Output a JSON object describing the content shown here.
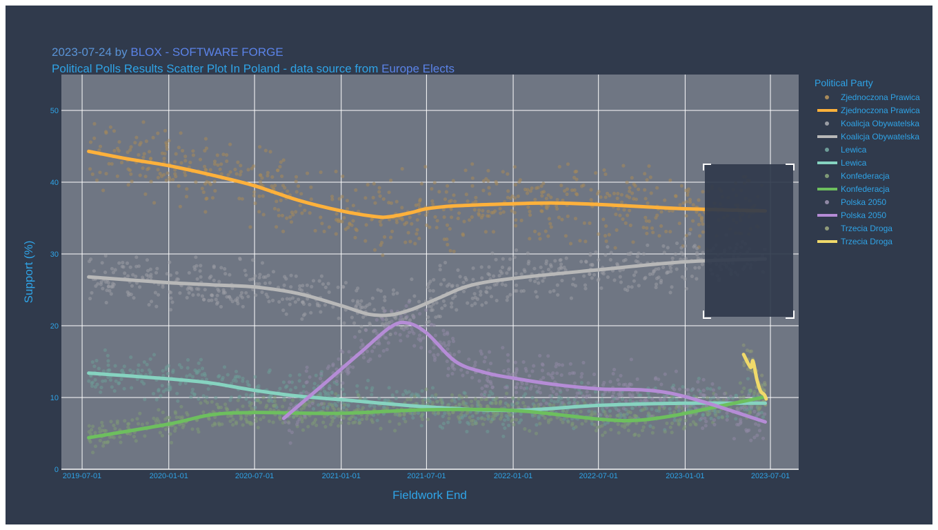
{
  "title": {
    "line1_prefix": "2023-07-24 by ",
    "line1_link": "BLOX - SOFTWARE FORGE",
    "line2_text": "Political Polls Results Scatter Plot In Poland - data source from ",
    "line2_link": "Europe Elects"
  },
  "colors": {
    "background": "#303a4c",
    "plot_background": "#6f7683",
    "text": "#2fa4e7",
    "link": "#5b83e8",
    "gridline": "#ffffff"
  },
  "chart_data": {
    "type": "scatter",
    "title": "2023-07-24 by BLOX - SOFTWARE FORGE / Political Polls Results Scatter Plot In Poland - data source from Europe Elects",
    "xlabel": "Fieldwork End",
    "ylabel": "Support (%)",
    "x_ticks": [
      "2019-07-01",
      "2020-01-01",
      "2020-07-01",
      "2021-01-01",
      "2021-07-01",
      "2022-01-01",
      "2022-07-01",
      "2023-01-01",
      "2023-07-01"
    ],
    "x_range": [
      "2019-05-18",
      "2023-08-30"
    ],
    "y_ticks": [
      0,
      10,
      20,
      30,
      40,
      50
    ],
    "ylim": [
      0,
      55
    ],
    "grid": true,
    "legend_title": "Political Party",
    "legend_position": "right",
    "legend": [
      {
        "label": "Zjednoczona Prawica",
        "kind": "markers"
      },
      {
        "label": "Zjednoczona Prawica",
        "kind": "lines"
      },
      {
        "label": "Koalicja Obywatelska",
        "kind": "markers"
      },
      {
        "label": "Koalicja Obywatelska",
        "kind": "lines"
      },
      {
        "label": "Lewica",
        "kind": "markers"
      },
      {
        "label": "Lewica",
        "kind": "lines"
      },
      {
        "label": "Konfederacja",
        "kind": "markers"
      },
      {
        "label": "Konfederacja",
        "kind": "lines"
      },
      {
        "label": "Polska 2050",
        "kind": "markers"
      },
      {
        "label": "Polska 2050",
        "kind": "lines"
      },
      {
        "label": "Trzecia Droga",
        "kind": "markers"
      },
      {
        "label": "Trzecia Droga",
        "kind": "lines"
      }
    ],
    "series": [
      {
        "name": "Zjednoczona Prawica",
        "color": "#ffb13b",
        "marker_color": "#a88a5a",
        "spread": 3.5,
        "trend": [
          [
            "2019-07-15",
            44.3
          ],
          [
            "2019-10-01",
            43.3
          ],
          [
            "2020-01-01",
            42.3
          ],
          [
            "2020-04-01",
            41.0
          ],
          [
            "2020-07-01",
            39.5
          ],
          [
            "2020-10-01",
            37.5
          ],
          [
            "2021-01-01",
            36.0
          ],
          [
            "2021-03-15",
            35.2
          ],
          [
            "2021-04-15",
            35.2
          ],
          [
            "2021-06-01",
            35.8
          ],
          [
            "2021-07-01",
            36.3
          ],
          [
            "2021-09-01",
            36.7
          ],
          [
            "2022-01-01",
            37.0
          ],
          [
            "2022-04-01",
            37.1
          ],
          [
            "2022-07-01",
            36.9
          ],
          [
            "2022-10-01",
            36.6
          ],
          [
            "2023-01-01",
            36.3
          ],
          [
            "2023-06-20",
            36.0
          ]
        ]
      },
      {
        "name": "Koalicja Obywatelska",
        "color": "#b8b8b8",
        "marker_color": "#9a9da4",
        "spread": 2.5,
        "trend": [
          [
            "2019-07-15",
            26.8
          ],
          [
            "2020-01-01",
            26.0
          ],
          [
            "2020-04-01",
            25.7
          ],
          [
            "2020-07-01",
            25.4
          ],
          [
            "2020-10-01",
            24.5
          ],
          [
            "2021-01-01",
            22.8
          ],
          [
            "2021-03-01",
            21.6
          ],
          [
            "2021-04-15",
            21.5
          ],
          [
            "2021-06-01",
            22.3
          ],
          [
            "2021-08-01",
            24.0
          ],
          [
            "2021-10-01",
            25.6
          ],
          [
            "2022-01-01",
            26.6
          ],
          [
            "2022-07-01",
            27.8
          ],
          [
            "2023-01-01",
            28.9
          ],
          [
            "2023-06-20",
            29.3
          ]
        ]
      },
      {
        "name": "Lewica",
        "color": "#86d3c0",
        "marker_color": "#6d9c98",
        "spread": 2.0,
        "trend": [
          [
            "2019-07-15",
            13.4
          ],
          [
            "2020-01-01",
            12.6
          ],
          [
            "2020-04-01",
            12.0
          ],
          [
            "2020-07-01",
            11.0
          ],
          [
            "2020-10-01",
            10.2
          ],
          [
            "2021-01-01",
            9.7
          ],
          [
            "2021-07-01",
            8.7
          ],
          [
            "2022-01-01",
            8.2
          ],
          [
            "2022-07-01",
            8.9
          ],
          [
            "2023-01-01",
            9.2
          ],
          [
            "2023-06-20",
            9.2
          ]
        ]
      },
      {
        "name": "Konfederacja",
        "color": "#6dbf5e",
        "marker_color": "#7f9a76",
        "spread": 1.6,
        "trend": [
          [
            "2019-07-15",
            4.4
          ],
          [
            "2020-01-01",
            6.3
          ],
          [
            "2020-04-01",
            7.6
          ],
          [
            "2020-07-01",
            7.9
          ],
          [
            "2021-01-01",
            7.8
          ],
          [
            "2021-07-01",
            8.3
          ],
          [
            "2022-01-01",
            8.2
          ],
          [
            "2022-07-01",
            7.0
          ],
          [
            "2022-09-15",
            6.8
          ],
          [
            "2022-12-01",
            7.4
          ],
          [
            "2023-03-01",
            8.6
          ],
          [
            "2023-06-20",
            10.1
          ]
        ]
      },
      {
        "name": "Polska 2050",
        "color": "#b58cd6",
        "marker_color": "#8f88a4",
        "spread": 2.4,
        "trend": [
          [
            "2020-09-01",
            7.1
          ],
          [
            "2020-12-01",
            12.2
          ],
          [
            "2021-02-15",
            16.5
          ],
          [
            "2021-04-15",
            19.8
          ],
          [
            "2021-05-20",
            20.4
          ],
          [
            "2021-07-01",
            19.0
          ],
          [
            "2021-09-01",
            15.0
          ],
          [
            "2021-11-01",
            13.5
          ],
          [
            "2022-01-01",
            12.7
          ],
          [
            "2022-04-01",
            11.8
          ],
          [
            "2022-07-01",
            11.2
          ],
          [
            "2022-12-01",
            10.6
          ],
          [
            "2023-06-20",
            6.6
          ]
        ]
      },
      {
        "name": "Trzecia Droga",
        "color": "#f0d96a",
        "marker_color": "#8f9a79",
        "spread": 1.5,
        "trend": [
          [
            "2023-05-05",
            16.0
          ],
          [
            "2023-05-20",
            14.2
          ],
          [
            "2023-05-25",
            15.1
          ],
          [
            "2023-06-02",
            12.6
          ],
          [
            "2023-06-10",
            10.9
          ],
          [
            "2023-06-18",
            10.4
          ],
          [
            "2023-06-22",
            9.8
          ]
        ]
      }
    ]
  }
}
